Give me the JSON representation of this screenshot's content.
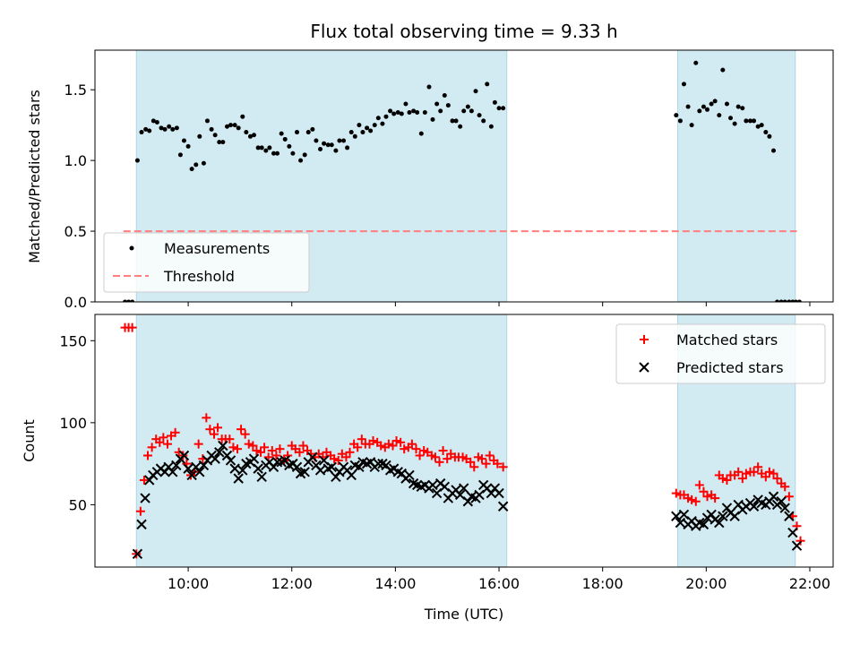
{
  "chart_data": {
    "title": "Flux total observing time = 9.33 h",
    "xlabel": "Time (UTC)",
    "x_unit": "hours UTC",
    "xlim": [
      8.2,
      22.45
    ],
    "xticks": [
      {
        "value": 10,
        "label": "10:00"
      },
      {
        "value": 12,
        "label": "12:00"
      },
      {
        "value": 14,
        "label": "14:00"
      },
      {
        "value": 16,
        "label": "16:00"
      },
      {
        "value": 18,
        "label": "18:00"
      },
      {
        "value": 20,
        "label": "20:00"
      },
      {
        "value": 22,
        "label": "22:00"
      }
    ],
    "observing_windows": [
      [
        9.0,
        16.15
      ],
      [
        19.45,
        21.72
      ]
    ],
    "window_color": "#add8e6",
    "panels": [
      {
        "type": "scatter",
        "ylabel": "Matched/Predicted stars",
        "ylim": [
          0,
          1.78
        ],
        "yticks": [
          {
            "value": 0,
            "label": "0.0"
          },
          {
            "value": 0.5,
            "label": "0.5"
          },
          {
            "value": 1.0,
            "label": "1.0"
          },
          {
            "value": 1.5,
            "label": "1.5"
          }
        ],
        "threshold": {
          "value": 0.5,
          "x_range": [
            8.75,
            21.75
          ],
          "color": "#ff7f7f"
        },
        "legend_position": "lower-left",
        "legend": [
          {
            "label": "Measurements",
            "marker": "dot",
            "color": "#000000"
          },
          {
            "label": "Threshold",
            "marker": "dashed-line",
            "color": "#ff7f7f"
          }
        ],
        "series": [
          {
            "name": "Measurements",
            "marker": "dot",
            "color": "#000000",
            "x": [
              8.78,
              8.85,
              8.92,
              9.02,
              9.1,
              9.18,
              9.25,
              9.33,
              9.4,
              9.48,
              9.55,
              9.63,
              9.7,
              9.78,
              9.85,
              9.92,
              10.0,
              10.07,
              10.15,
              10.22,
              10.3,
              10.37,
              10.45,
              10.52,
              10.6,
              10.67,
              10.75,
              10.82,
              10.9,
              10.97,
              11.05,
              11.12,
              11.2,
              11.27,
              11.35,
              11.42,
              11.5,
              11.57,
              11.65,
              11.72,
              11.8,
              11.87,
              11.95,
              12.02,
              12.1,
              12.17,
              12.25,
              12.32,
              12.4,
              12.47,
              12.55,
              12.62,
              12.7,
              12.77,
              12.85,
              12.92,
              13.0,
              13.07,
              13.15,
              13.22,
              13.3,
              13.37,
              13.45,
              13.52,
              13.6,
              13.67,
              13.75,
              13.82,
              13.9,
              13.97,
              14.05,
              14.12,
              14.2,
              14.27,
              14.35,
              14.42,
              14.5,
              14.57,
              14.65,
              14.72,
              14.8,
              14.87,
              14.95,
              15.02,
              15.1,
              15.17,
              15.25,
              15.32,
              15.4,
              15.47,
              15.55,
              15.62,
              15.7,
              15.77,
              15.85,
              15.92,
              16.0,
              16.08,
              19.42,
              19.5,
              19.57,
              19.65,
              19.72,
              19.8,
              19.87,
              19.95,
              20.02,
              20.1,
              20.17,
              20.25,
              20.32,
              20.4,
              20.47,
              20.55,
              20.62,
              20.7,
              20.77,
              20.85,
              20.92,
              21.0,
              21.07,
              21.15,
              21.22,
              21.3,
              21.37,
              21.45,
              21.52,
              21.6,
              21.67,
              21.73,
              21.8
            ],
            "y": [
              0.0,
              0.0,
              0.0,
              1.0,
              1.2,
              1.22,
              1.21,
              1.28,
              1.27,
              1.23,
              1.22,
              1.24,
              1.22,
              1.23,
              1.04,
              1.14,
              1.1,
              0.94,
              0.97,
              1.17,
              0.98,
              1.28,
              1.22,
              1.18,
              1.13,
              1.13,
              1.24,
              1.25,
              1.25,
              1.23,
              1.31,
              1.2,
              1.17,
              1.18,
              1.09,
              1.09,
              1.07,
              1.09,
              1.05,
              1.05,
              1.19,
              1.15,
              1.1,
              1.05,
              1.2,
              1.0,
              1.04,
              1.2,
              1.22,
              1.14,
              1.08,
              1.12,
              1.11,
              1.11,
              1.07,
              1.14,
              1.14,
              1.09,
              1.2,
              1.17,
              1.25,
              1.2,
              1.23,
              1.21,
              1.25,
              1.3,
              1.26,
              1.31,
              1.35,
              1.33,
              1.34,
              1.33,
              1.4,
              1.34,
              1.35,
              1.34,
              1.19,
              1.34,
              1.52,
              1.29,
              1.4,
              1.35,
              1.46,
              1.39,
              1.28,
              1.28,
              1.24,
              1.35,
              1.38,
              1.35,
              1.49,
              1.32,
              1.28,
              1.54,
              1.24,
              1.41,
              1.37,
              1.37,
              1.32,
              1.28,
              1.54,
              1.38,
              1.25,
              1.69,
              1.35,
              1.38,
              1.36,
              1.4,
              1.42,
              1.32,
              1.64,
              1.4,
              1.3,
              1.26,
              1.38,
              1.37,
              1.28,
              1.28,
              1.28,
              1.24,
              1.25,
              1.2,
              1.17,
              1.07,
              0.0,
              0.0,
              0.0,
              0.0,
              0.0,
              0.0,
              0.0
            ]
          }
        ]
      },
      {
        "type": "scatter",
        "ylabel": "Count",
        "ylim": [
          12,
          166
        ],
        "yticks": [
          {
            "value": 50,
            "label": "50"
          },
          {
            "value": 100,
            "label": "100"
          },
          {
            "value": 150,
            "label": "150"
          }
        ],
        "legend_position": "top-right",
        "legend": [
          {
            "label": "Matched stars",
            "marker": "plus",
            "color": "#ff0000"
          },
          {
            "label": "Predicted stars",
            "marker": "x",
            "color": "#000000"
          }
        ],
        "series": [
          {
            "name": "Matched stars",
            "marker": "plus",
            "color": "#ff0000",
            "x": [
              8.78,
              8.85,
              8.92,
              9.0,
              9.08,
              9.15,
              9.22,
              9.3,
              9.38,
              9.45,
              9.52,
              9.6,
              9.67,
              9.75,
              9.82,
              9.9,
              9.97,
              10.05,
              10.12,
              10.2,
              10.28,
              10.35,
              10.42,
              10.5,
              10.57,
              10.65,
              10.72,
              10.8,
              10.87,
              10.95,
              11.02,
              11.1,
              11.17,
              11.25,
              11.32,
              11.4,
              11.47,
              11.55,
              11.62,
              11.7,
              11.77,
              11.85,
              11.92,
              12.0,
              12.07,
              12.15,
              12.22,
              12.3,
              12.37,
              12.45,
              12.52,
              12.6,
              12.67,
              12.75,
              12.82,
              12.9,
              12.97,
              13.05,
              13.12,
              13.2,
              13.27,
              13.35,
              13.42,
              13.5,
              13.57,
              13.65,
              13.72,
              13.8,
              13.87,
              13.95,
              14.02,
              14.1,
              14.17,
              14.25,
              14.32,
              14.4,
              14.47,
              14.55,
              14.62,
              14.7,
              14.77,
              14.85,
              14.92,
              15.0,
              15.07,
              15.15,
              15.22,
              15.3,
              15.37,
              15.45,
              15.52,
              15.6,
              15.67,
              15.75,
              15.82,
              15.9,
              15.97,
              16.08,
              19.42,
              19.5,
              19.57,
              19.65,
              19.72,
              19.8,
              19.87,
              19.95,
              20.02,
              20.1,
              20.17,
              20.25,
              20.32,
              20.4,
              20.47,
              20.55,
              20.62,
              20.7,
              20.77,
              20.85,
              20.92,
              21.0,
              21.07,
              21.15,
              21.22,
              21.3,
              21.37,
              21.45,
              21.52,
              21.6,
              21.67,
              21.75,
              21.82
            ],
            "y": [
              158,
              158,
              158,
              20,
              46,
              65,
              80,
              85,
              90,
              88,
              91,
              87,
              92,
              94,
              82,
              80,
              75,
              68,
              70,
              87,
              78,
              103,
              96,
              93,
              97,
              90,
              90,
              90,
              85,
              84,
              96,
              93,
              87,
              86,
              83,
              82,
              85,
              79,
              83,
              80,
              84,
              77,
              80,
              86,
              84,
              82,
              86,
              83,
              81,
              79,
              81,
              79,
              82,
              80,
              78,
              77,
              81,
              79,
              82,
              87,
              85,
              90,
              87,
              87,
              89,
              88,
              86,
              85,
              87,
              86,
              89,
              88,
              84,
              85,
              87,
              84,
              80,
              83,
              82,
              80,
              79,
              76,
              83,
              78,
              81,
              79,
              79,
              79,
              78,
              76,
              73,
              79,
              78,
              75,
              80,
              77,
              75,
              73,
              57,
              56,
              56,
              54,
              53,
              52,
              62,
              58,
              55,
              56,
              54,
              68,
              66,
              65,
              68,
              68,
              70,
              66,
              69,
              70,
              70,
              73,
              69,
              67,
              70,
              69,
              66,
              63,
              61,
              55,
              43,
              37,
              28
            ]
          },
          {
            "name": "Predicted stars",
            "marker": "x",
            "color": "#000000",
            "x": [
              9.02,
              9.1,
              9.17,
              9.25,
              9.32,
              9.4,
              9.47,
              9.55,
              9.62,
              9.7,
              9.77,
              9.85,
              9.92,
              10.0,
              10.07,
              10.15,
              10.22,
              10.3,
              10.37,
              10.45,
              10.52,
              10.6,
              10.67,
              10.75,
              10.82,
              10.9,
              10.97,
              11.05,
              11.12,
              11.2,
              11.27,
              11.35,
              11.42,
              11.5,
              11.57,
              11.65,
              11.72,
              11.8,
              11.87,
              11.95,
              12.02,
              12.1,
              12.17,
              12.25,
              12.32,
              12.4,
              12.47,
              12.55,
              12.62,
              12.7,
              12.77,
              12.85,
              12.92,
              13.0,
              13.07,
              13.15,
              13.22,
              13.3,
              13.37,
              13.45,
              13.52,
              13.6,
              13.67,
              13.75,
              13.82,
              13.9,
              13.97,
              14.05,
              14.12,
              14.2,
              14.27,
              14.35,
              14.42,
              14.5,
              14.57,
              14.65,
              14.72,
              14.8,
              14.87,
              14.95,
              15.02,
              15.1,
              15.17,
              15.25,
              15.32,
              15.4,
              15.47,
              15.55,
              15.62,
              15.7,
              15.77,
              15.85,
              15.92,
              16.0,
              16.08,
              19.42,
              19.5,
              19.57,
              19.65,
              19.72,
              19.8,
              19.87,
              19.95,
              20.02,
              20.1,
              20.17,
              20.25,
              20.32,
              20.4,
              20.47,
              20.55,
              20.62,
              20.7,
              20.77,
              20.85,
              20.92,
              21.0,
              21.07,
              21.15,
              21.22,
              21.3,
              21.37,
              21.45,
              21.52,
              21.6,
              21.67,
              21.75
            ],
            "y": [
              20,
              38,
              54,
              65,
              68,
              70,
              72,
              70,
              73,
              70,
              74,
              78,
              80,
              72,
              68,
              73,
              70,
              74,
              77,
              80,
              78,
              82,
              86,
              80,
              77,
              72,
              66,
              71,
              75,
              76,
              78,
              72,
              67,
              74,
              76,
              73,
              76,
              76,
              77,
              74,
              75,
              73,
              69,
              70,
              76,
              79,
              74,
              71,
              77,
              72,
              73,
              67,
              70,
              73,
              71,
              68,
              74,
              73,
              76,
              75,
              76,
              73,
              75,
              75,
              74,
              71,
              72,
              70,
              69,
              66,
              68,
              63,
              62,
              61,
              62,
              60,
              62,
              57,
              63,
              61,
              54,
              57,
              59,
              56,
              60,
              52,
              55,
              54,
              56,
              62,
              60,
              57,
              60,
              57,
              49,
              43,
              39,
              44,
              38,
              40,
              37,
              39,
              38,
              42,
              44,
              41,
              39,
              43,
              48,
              45,
              43,
              50,
              47,
              49,
              51,
              49,
              53,
              51,
              50,
              52,
              55,
              50,
              52,
              48,
              43,
              33,
              25
            ]
          }
        ]
      }
    ]
  }
}
